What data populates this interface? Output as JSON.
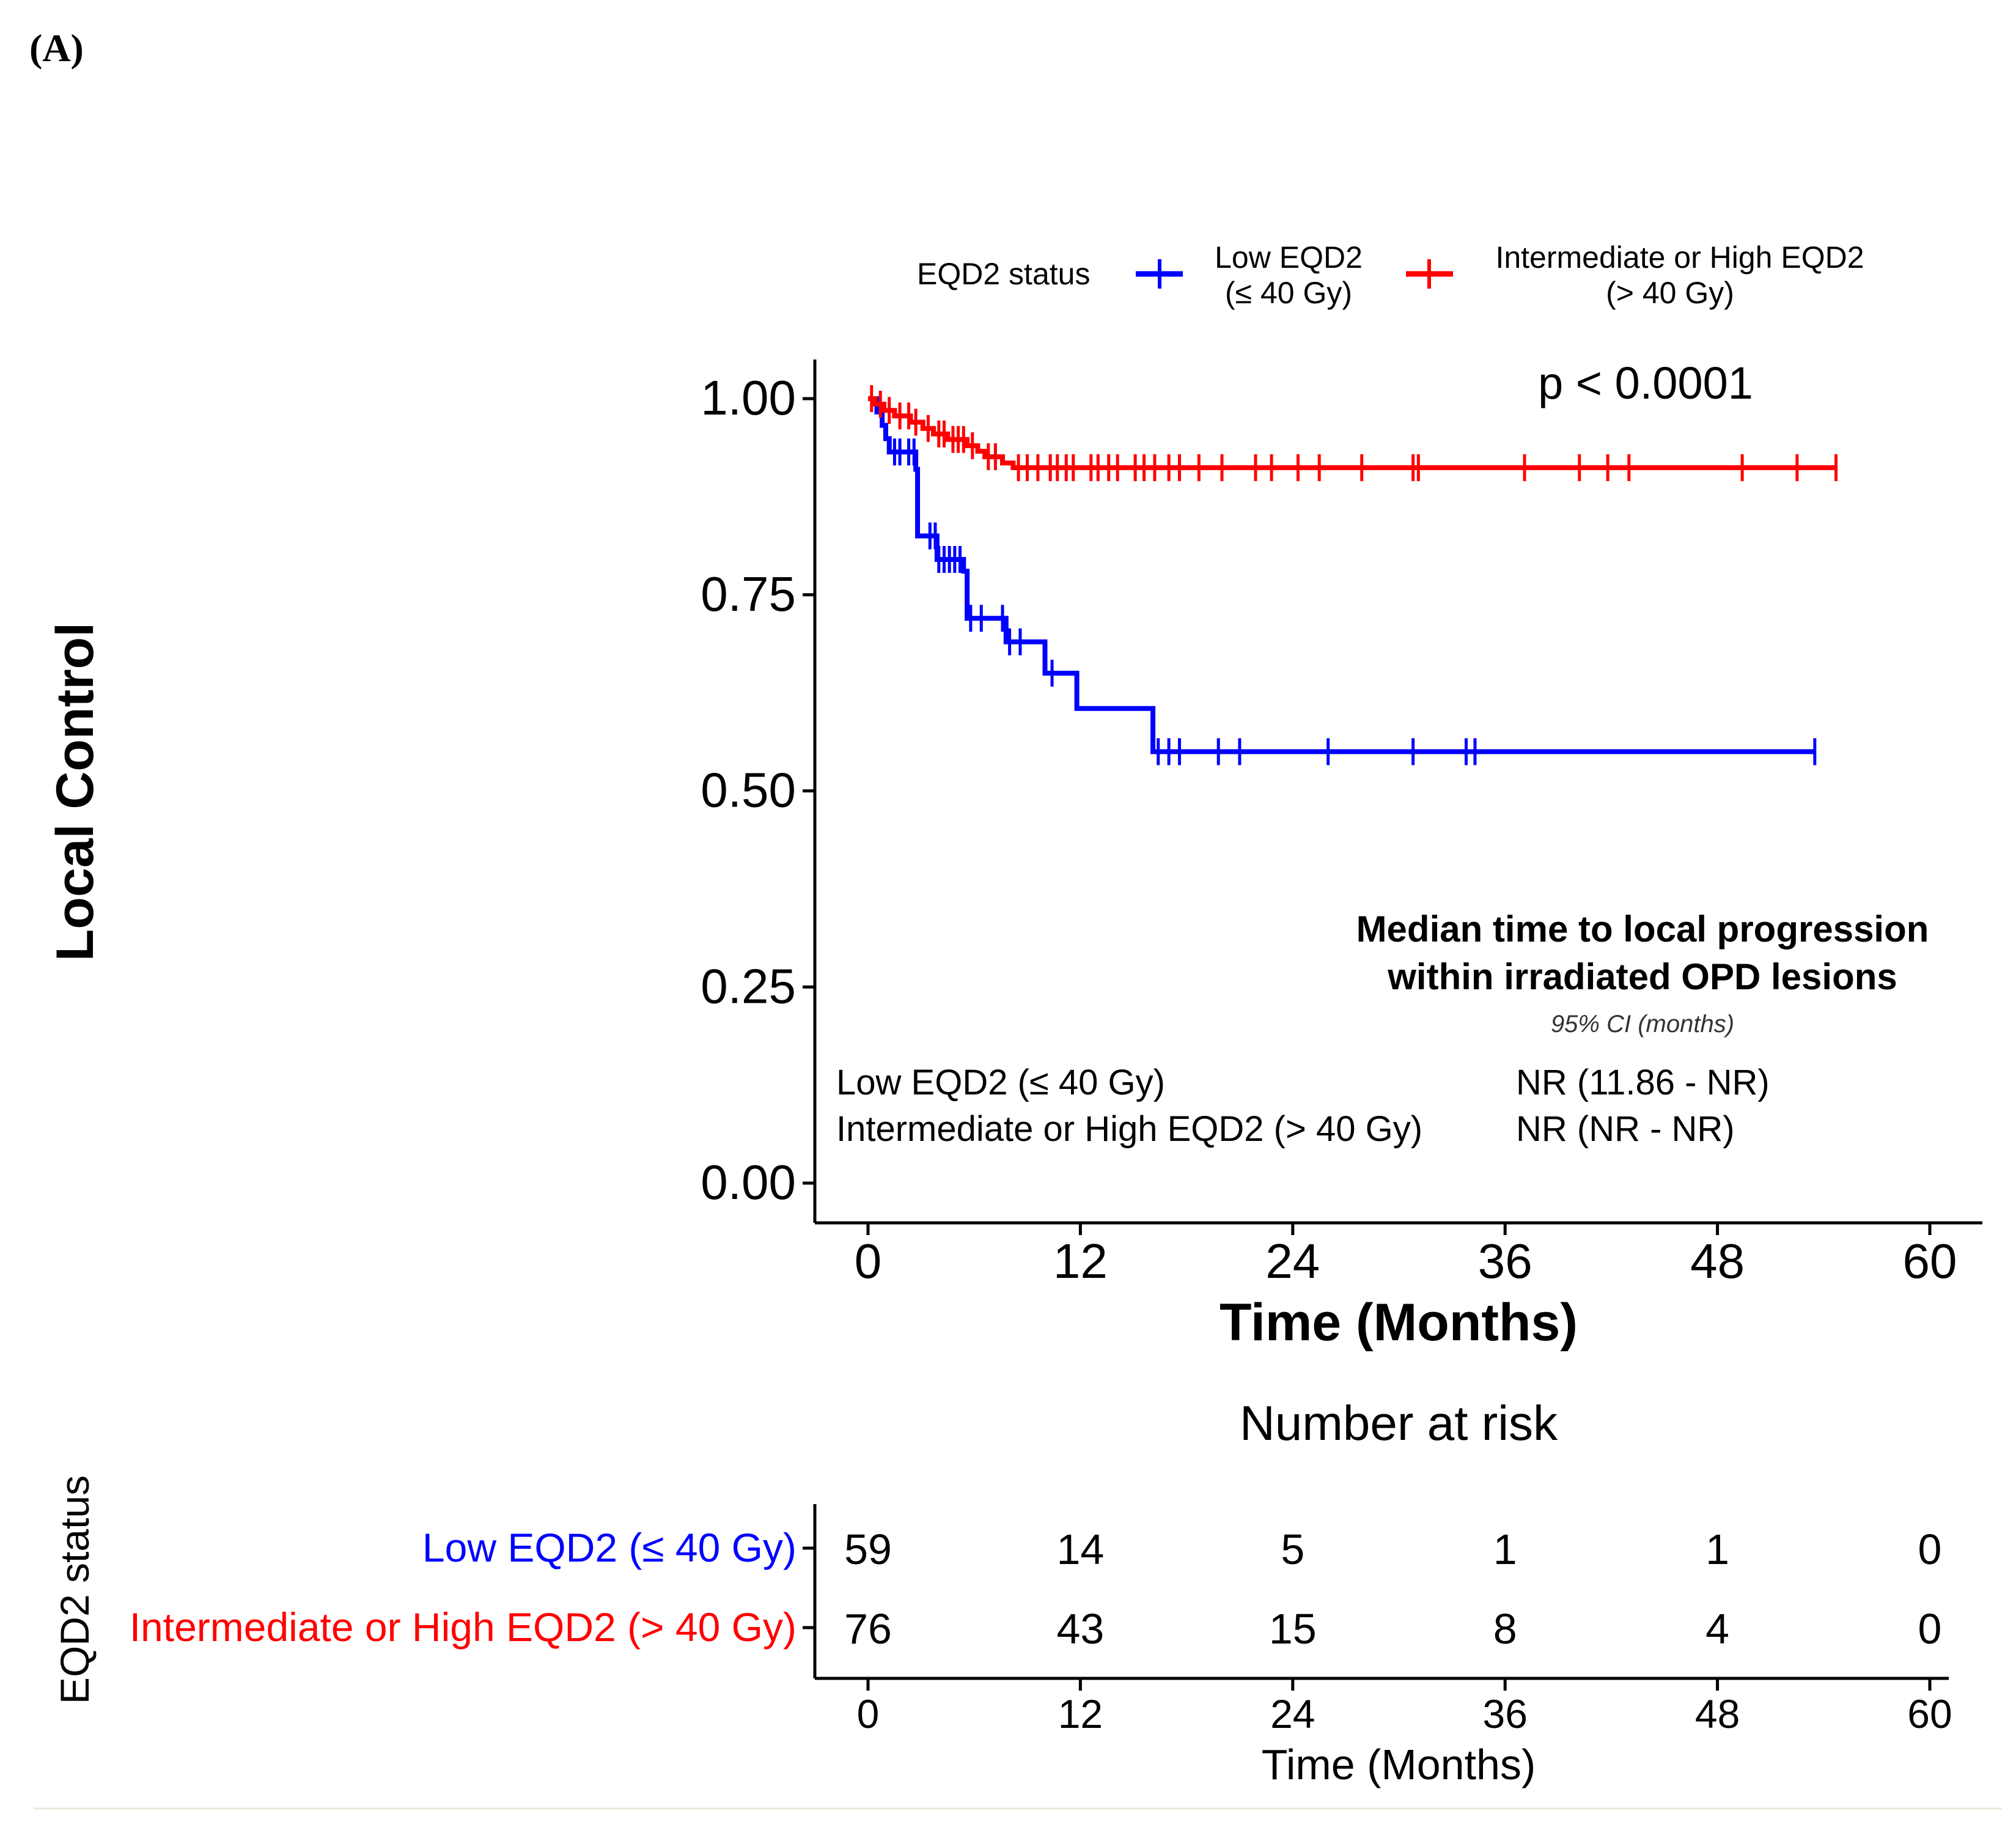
{
  "panel_label": "(A)",
  "chart_data": {
    "type": "line",
    "subtype": "kaplan-meier",
    "title": "",
    "xlabel": "Time (Months)",
    "ylabel": "Local Control",
    "xlim": [
      0,
      60
    ],
    "ylim": [
      0,
      1
    ],
    "x_ticks": [
      "0",
      "12",
      "24",
      "36",
      "48",
      "60"
    ],
    "y_ticks": [
      "0.00",
      "0.25",
      "0.50",
      "0.75",
      "1.00"
    ],
    "x_tick_values": [
      0,
      12,
      24,
      36,
      48,
      60
    ],
    "y_tick_values": [
      0,
      0.25,
      0.5,
      0.75,
      1.0
    ],
    "p_value": "p < 0.0001",
    "legend": {
      "title": "EQD2 status",
      "position": "top",
      "entries": [
        {
          "line1": "Low EQD2",
          "line2": "(≤ 40 Gy)"
        },
        {
          "line1": "Intermediate or High EQD2",
          "line2": "(> 40 Gy)"
        }
      ]
    },
    "series": [
      {
        "name": "Low EQD2 (≤ 40 Gy)",
        "color": "#0000ff",
        "steps": [
          [
            0,
            1.0
          ],
          [
            0.5,
            0.983
          ],
          [
            0.8,
            0.966
          ],
          [
            1.0,
            0.949
          ],
          [
            1.2,
            0.932
          ],
          [
            2.7,
            0.91
          ],
          [
            2.8,
            0.825
          ],
          [
            3.9,
            0.795
          ],
          [
            5.4,
            0.78
          ],
          [
            5.6,
            0.72
          ],
          [
            7.8,
            0.69
          ],
          [
            10.0,
            0.65
          ],
          [
            11.8,
            0.605
          ],
          [
            16.1,
            0.55
          ],
          [
            53.5,
            0.55
          ]
        ],
        "censor_times": [
          1.5,
          1.8,
          2.3,
          2.6,
          3.5,
          3.8,
          4.0,
          4.3,
          4.6,
          4.9,
          5.2,
          5.8,
          6.4,
          7.6,
          8.0,
          8.6,
          10.4,
          16.4,
          17.0,
          17.6,
          19.8,
          21.0,
          26.0,
          30.8,
          33.8,
          34.3,
          53.5
        ]
      },
      {
        "name": "Intermediate or High EQD2 (> 40 Gy)",
        "color": "#ff0000",
        "steps": [
          [
            0,
            1.0
          ],
          [
            0.4,
            0.993
          ],
          [
            0.9,
            0.985
          ],
          [
            1.5,
            0.978
          ],
          [
            2.4,
            0.97
          ],
          [
            3.1,
            0.962
          ],
          [
            3.7,
            0.955
          ],
          [
            4.5,
            0.948
          ],
          [
            5.6,
            0.94
          ],
          [
            6.2,
            0.933
          ],
          [
            6.6,
            0.926
          ],
          [
            7.6,
            0.918
          ],
          [
            8.2,
            0.912
          ],
          [
            54.7,
            0.912
          ]
        ],
        "censor_times": [
          0.2,
          0.7,
          1.2,
          1.8,
          2.3,
          2.7,
          3.4,
          4.0,
          4.3,
          4.8,
          5.1,
          5.4,
          5.9,
          6.8,
          7.2,
          8.5,
          9.0,
          9.6,
          10.3,
          10.7,
          11.2,
          11.6,
          12.6,
          13.0,
          13.6,
          14.1,
          15.1,
          15.6,
          16.2,
          17.0,
          17.6,
          18.7,
          20.0,
          21.9,
          22.8,
          24.3,
          25.5,
          27.9,
          30.8,
          31.1,
          37.1,
          40.2,
          41.8,
          43.0,
          49.4,
          52.5,
          54.7
        ]
      }
    ],
    "median_table": {
      "heading_line1": "Median time to local progression",
      "heading_line2": "within irradiated OPD lesions",
      "subheading": "95% CI (months)",
      "rows": [
        {
          "label": "Low EQD2 (≤ 40 Gy)",
          "value": "NR (11.86 - NR)"
        },
        {
          "label": "Intermediate or High EQD2 (> 40 Gy)",
          "value": "NR (NR - NR)"
        }
      ]
    },
    "risk_table": {
      "title": "Number at risk",
      "ylabel": "EQD2 status",
      "xlabel": "Time (Months)",
      "times": [
        "0",
        "12",
        "24",
        "36",
        "48",
        "60"
      ],
      "rows": [
        {
          "label": "Low EQD2 (≤ 40 Gy)",
          "color": "#0000ff",
          "counts": [
            "59",
            "14",
            "5",
            "1",
            "1",
            "0"
          ]
        },
        {
          "label": "Intermediate or High EQD2 (> 40 Gy)",
          "color": "#ff0000",
          "counts": [
            "76",
            "43",
            "15",
            "8",
            "4",
            "0"
          ]
        }
      ]
    }
  }
}
